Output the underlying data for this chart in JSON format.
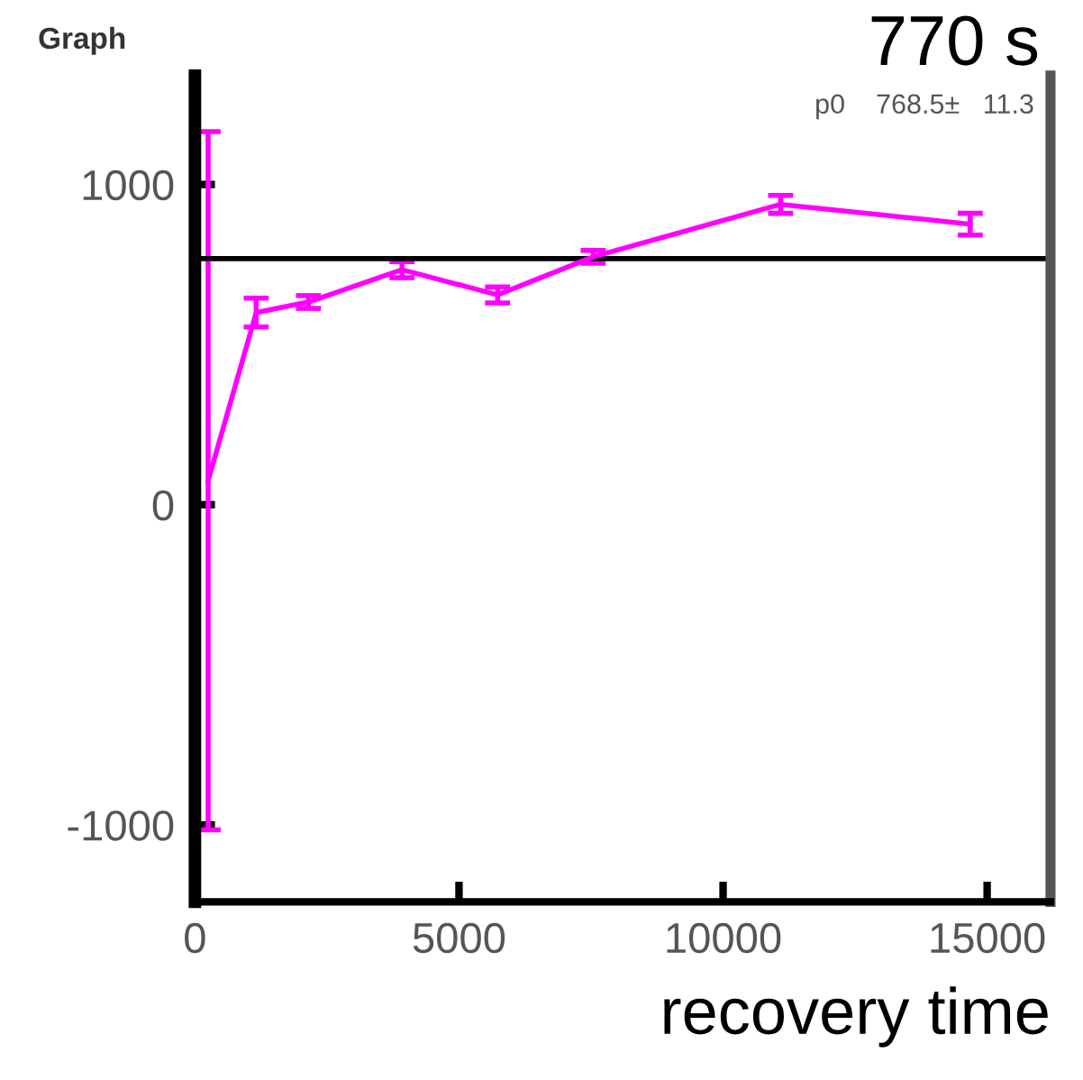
{
  "chart_data": {
    "type": "line",
    "title": "Graph",
    "xlabel": "recovery time",
    "annotations": [
      "770 s",
      "p0    768.5±   11.3"
    ],
    "x": [
      250,
      1160,
      2150,
      3920,
      5730,
      7540,
      11090,
      14680
    ],
    "series": [
      {
        "color": "#ff00ff",
        "values": [
          75,
          600,
          633,
          734,
          655,
          774,
          938,
          876
        ],
        "errors": [
          1090,
          45,
          20,
          25,
          25,
          20,
          28,
          34
        ]
      }
    ],
    "xlim": [
      0,
      16200
    ],
    "xticks": [
      0,
      5000,
      10000,
      15000
    ],
    "ylim": [
      -1240,
      1340
    ],
    "yticks": [
      -1000,
      0,
      1000
    ],
    "ref_lines": [
      {
        "axis": "y",
        "value": 768.5,
        "color": "#000000"
      }
    ],
    "grid": false,
    "marker": "none",
    "line_style": "solid"
  }
}
